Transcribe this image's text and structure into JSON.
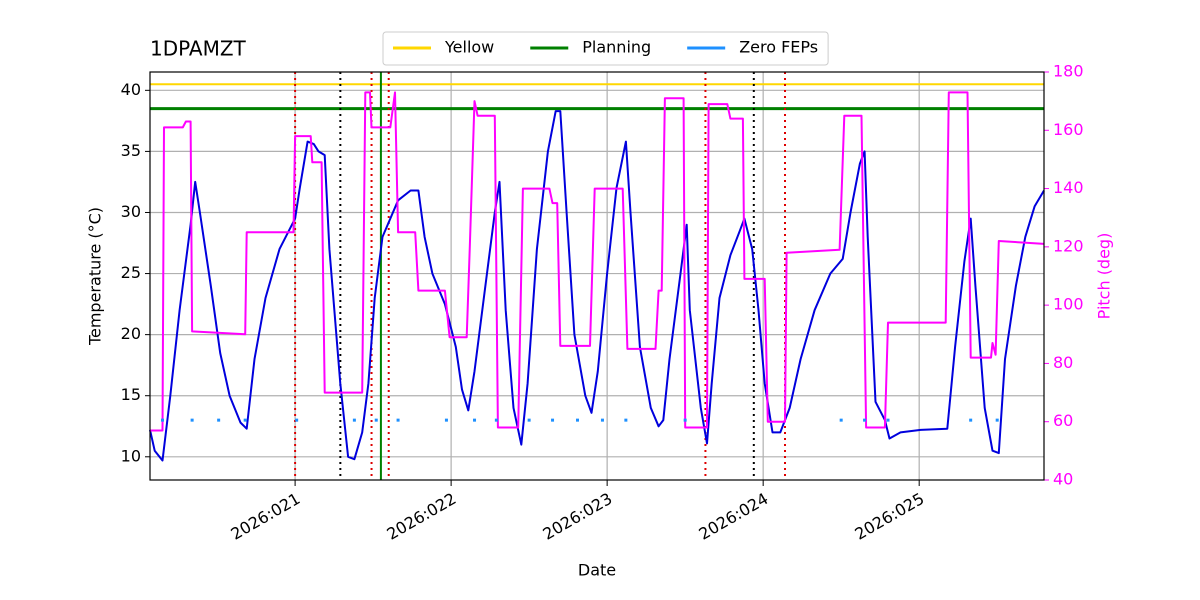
{
  "chart_data": {
    "type": "line",
    "title": "1DPAMZT",
    "x_label": "Date",
    "y_label": "Temperature (°C)",
    "y2_label": "Pitch (deg)",
    "xlim": [
      20.07,
      25.8
    ],
    "xticks": [
      {
        "value": 21,
        "label": "2026:021"
      },
      {
        "value": 22,
        "label": "2026:022"
      },
      {
        "value": 23,
        "label": "2026:023"
      },
      {
        "value": 24,
        "label": "2026:024"
      },
      {
        "value": 25,
        "label": "2026:025"
      }
    ],
    "ylim": [
      8.1,
      41.5
    ],
    "yticks": [
      10,
      15,
      20,
      25,
      30,
      35,
      40
    ],
    "y2lim": [
      40,
      180
    ],
    "y2ticks": [
      40,
      60,
      80,
      100,
      120,
      140,
      160,
      180
    ],
    "grid": true,
    "legend": "top",
    "hlines": [
      {
        "name": "Yellow",
        "value": 40.5,
        "color": "#ffd700"
      },
      {
        "name": "Planning",
        "value": 38.5,
        "color": "#008000"
      }
    ],
    "vlines": [
      {
        "x": 21.0,
        "color": "#dd0000",
        "style": "dotted"
      },
      {
        "x": 21.29,
        "color": "#000000",
        "style": "dotted"
      },
      {
        "x": 21.49,
        "color": "#dd0000",
        "style": "dotted"
      },
      {
        "x": 21.55,
        "color": "#008000",
        "style": "solid"
      },
      {
        "x": 21.6,
        "color": "#dd0000",
        "style": "dotted"
      },
      {
        "x": 23.63,
        "color": "#dd0000",
        "style": "dotted"
      },
      {
        "x": 23.94,
        "color": "#000000",
        "style": "dotted"
      },
      {
        "x": 24.14,
        "color": "#dd0000",
        "style": "dotted"
      }
    ],
    "series": [
      {
        "color": "#0000dd",
        "x": [
          20.07,
          20.1,
          20.15,
          20.2,
          20.26,
          20.33,
          20.36,
          20.39,
          20.46,
          20.52,
          20.58,
          20.65,
          20.69,
          20.74,
          20.81,
          20.9,
          21.0,
          21.03,
          21.08,
          21.12,
          21.15,
          21.19,
          21.22,
          21.29,
          21.34,
          21.38,
          21.43,
          21.47,
          21.51,
          21.56,
          21.61,
          21.66,
          21.74,
          21.79,
          21.83,
          21.88,
          21.96,
          22.03,
          22.07,
          22.11,
          22.15,
          22.22,
          22.28,
          22.31,
          22.35,
          22.4,
          22.45,
          22.49,
          22.55,
          22.62,
          22.67,
          22.7,
          22.74,
          22.79,
          22.86,
          22.9,
          22.94,
          23.0,
          23.06,
          23.12,
          23.15,
          23.21,
          23.28,
          23.33,
          23.36,
          23.4,
          23.47,
          23.51,
          23.53,
          23.6,
          23.64,
          23.67,
          23.72,
          23.79,
          23.85,
          23.88,
          23.93,
          23.97,
          24.01,
          24.06,
          24.11,
          24.17,
          24.24,
          24.33,
          24.43,
          24.51,
          24.56,
          24.62,
          24.65,
          24.67,
          24.72,
          24.78,
          24.81,
          24.88,
          25.01,
          25.18,
          25.23,
          25.29,
          25.33,
          25.36,
          25.42,
          25.47,
          25.51,
          25.55,
          25.62,
          25.68,
          25.74,
          25.8
        ],
        "values": [
          12.2,
          10.5,
          9.7,
          15,
          22,
          29,
          32.5,
          30,
          24,
          18.5,
          15,
          12.8,
          12.3,
          18,
          23,
          27,
          29.5,
          32,
          35.8,
          35.6,
          35,
          34.7,
          27,
          16,
          10,
          9.8,
          12,
          16,
          23,
          28,
          29.5,
          31,
          31.8,
          31.8,
          28,
          25,
          22.5,
          19,
          15.5,
          13.8,
          17,
          24,
          30,
          32.5,
          22,
          14,
          11,
          16,
          27,
          35,
          38.3,
          38.3,
          30,
          20,
          15,
          13.6,
          17,
          25,
          32,
          35.8,
          30,
          19,
          14,
          12.5,
          13,
          18,
          25,
          29,
          22,
          14,
          11.1,
          16,
          23,
          26.5,
          28.5,
          29.5,
          27,
          22,
          16,
          12,
          12,
          14,
          18,
          22,
          25,
          26.2,
          30,
          34,
          35,
          28,
          14.5,
          13,
          11.5,
          12,
          12.2,
          12.3,
          19,
          26,
          29.5,
          24,
          14,
          10.5,
          10.3,
          18,
          24,
          28,
          30.5,
          31.8
        ]
      },
      {
        "color": "#ff00ff",
        "axis": "y2",
        "x": [
          20.07,
          20.15,
          20.16,
          20.28,
          20.3,
          20.33,
          20.34,
          20.68,
          20.69,
          20.99,
          21.0,
          21.1,
          21.11,
          21.17,
          21.19,
          21.43,
          21.45,
          21.48,
          21.49,
          21.61,
          21.64,
          21.66,
          21.77,
          21.79,
          21.96,
          21.99,
          22.1,
          22.12,
          22.15,
          22.17,
          22.28,
          22.3,
          22.43,
          22.46,
          22.63,
          22.65,
          22.68,
          22.7,
          22.89,
          22.92,
          23.1,
          23.13,
          23.31,
          23.33,
          23.35,
          23.37,
          23.49,
          23.5,
          23.64,
          23.65,
          23.77,
          23.79,
          23.87,
          23.88,
          24.01,
          24.03,
          24.14,
          24.15,
          24.49,
          24.52,
          24.63,
          24.66,
          24.78,
          24.8,
          25.17,
          25.19,
          25.31,
          25.33,
          25.46,
          25.47,
          25.49,
          25.51,
          25.8
        ],
        "values": [
          57,
          57,
          161,
          161,
          163,
          163,
          91,
          90,
          125,
          125,
          158,
          158,
          149,
          149,
          70,
          70,
          173,
          173,
          161,
          161,
          173,
          125,
          125,
          105,
          105,
          89,
          89,
          120,
          170,
          165,
          165,
          58,
          58,
          140,
          140,
          135,
          135,
          86,
          86,
          140,
          140,
          85,
          85,
          105,
          105,
          171,
          171,
          58,
          58,
          169,
          169,
          164,
          164,
          109,
          109,
          60,
          60,
          118,
          119,
          165,
          165,
          58,
          58,
          94,
          94,
          173,
          173,
          82,
          82,
          87,
          83,
          122,
          121
        ]
      },
      {
        "name": "Zero FEPs",
        "color": "#1e90ff",
        "marker": "dot",
        "x": [
          20.15,
          20.34,
          20.51,
          20.68,
          21.01,
          21.38,
          21.52,
          21.66,
          21.97,
          22.15,
          22.29,
          22.5,
          22.65,
          22.81,
          22.97,
          23.12,
          23.5,
          24.5,
          24.65,
          24.8,
          25.33,
          25.5
        ],
        "values": [
          13,
          13,
          13,
          13,
          13,
          13,
          13,
          13,
          13,
          13,
          13,
          13,
          13,
          13,
          13,
          13,
          13,
          13,
          13,
          13,
          13,
          13
        ]
      }
    ]
  }
}
